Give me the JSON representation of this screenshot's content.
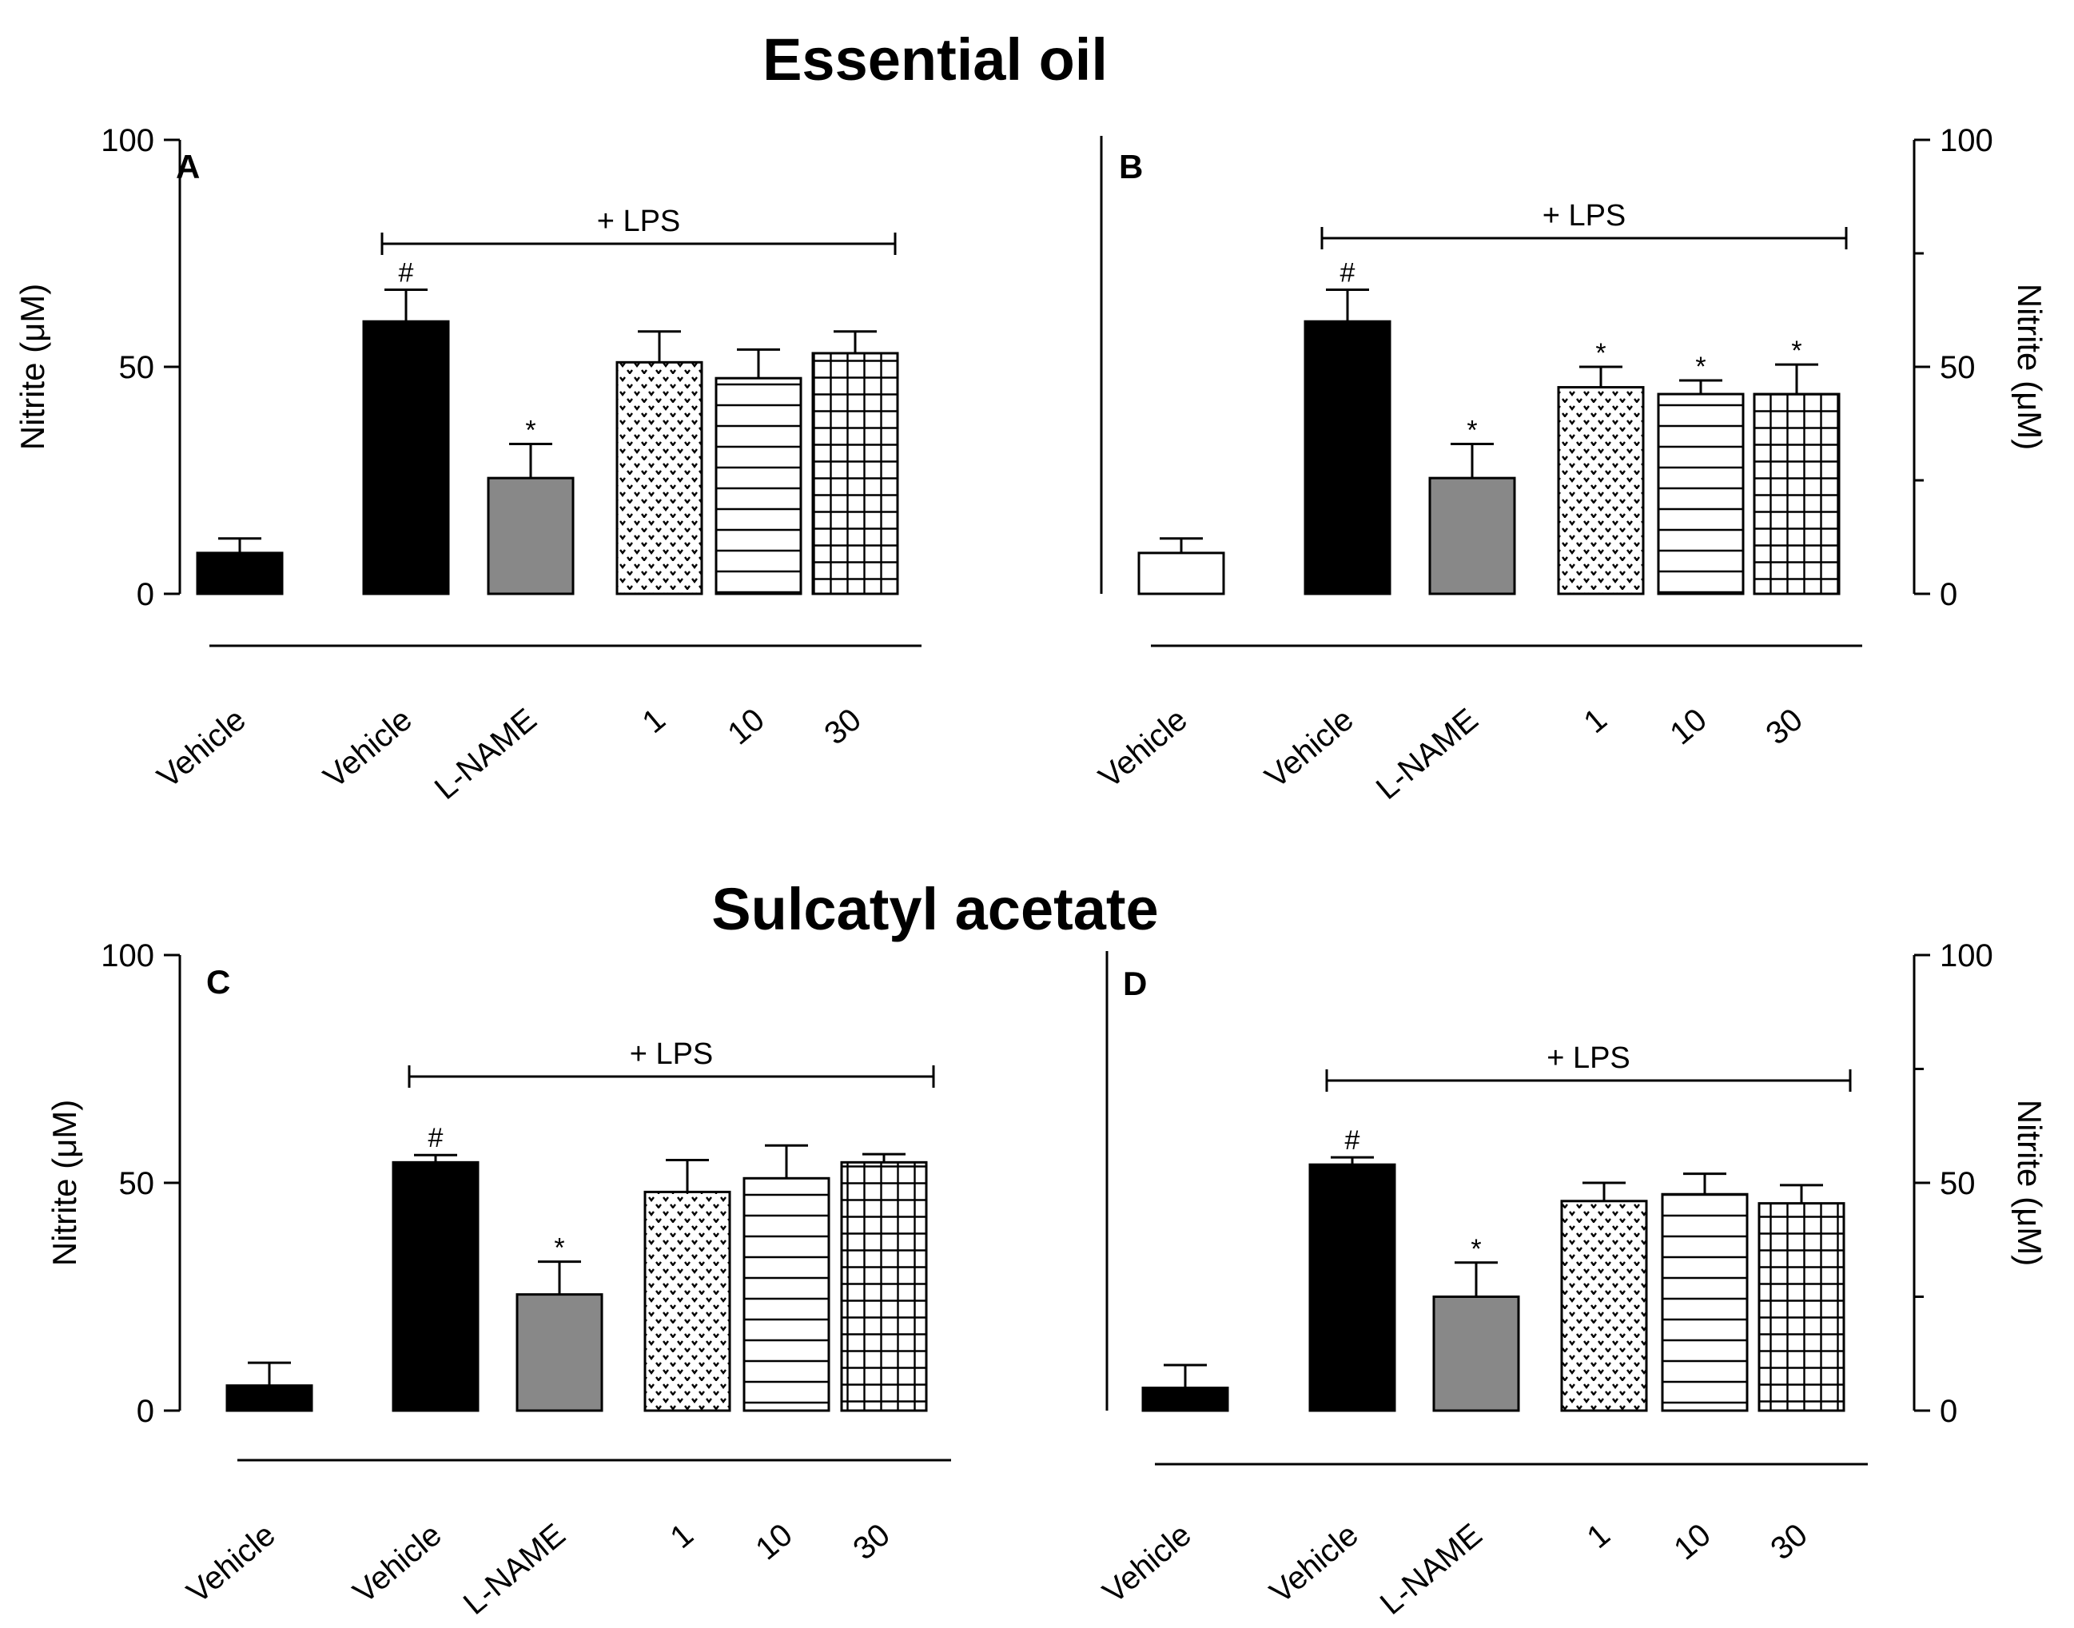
{
  "titles": {
    "top": "Essential oil",
    "bottom": "Sulcatyl acetate"
  },
  "chart_data": [
    {
      "panel": "A",
      "type": "bar",
      "ylabel": "Nitrite (μM)",
      "ylim": [
        0,
        100
      ],
      "yticks": [
        "0",
        "50",
        "100"
      ],
      "axis_side": "left",
      "bracket_label": "+ LPS",
      "categories": [
        "Vehicle",
        "Vehicle",
        "L-NAME",
        "1",
        "10",
        "30"
      ],
      "values": [
        9,
        60,
        25.5,
        51,
        47.5,
        53
      ],
      "errors": [
        3.2,
        7,
        7.5,
        6.8,
        6.3,
        4.8
      ],
      "significance": [
        "",
        "#",
        "*",
        "",
        "",
        ""
      ],
      "fills": [
        "black",
        "black",
        "gray",
        "dots",
        "hlines",
        "grid"
      ],
      "colors": {
        "black": "#000000",
        "gray": "#888888"
      }
    },
    {
      "panel": "B",
      "type": "bar",
      "ylabel": "Nitrite (μM)",
      "ylim": [
        0,
        100
      ],
      "yticks": [
        "0",
        "50",
        "100"
      ],
      "axis_side": "right",
      "bracket_label": "+ LPS",
      "categories": [
        "Vehicle",
        "Vehicle",
        "L-NAME",
        "1",
        "10",
        "30"
      ],
      "values": [
        9,
        60,
        25.5,
        45.5,
        44,
        44
      ],
      "errors": [
        3.2,
        7,
        7.5,
        4.5,
        3,
        6.5
      ],
      "significance": [
        "",
        "#",
        "*",
        "*",
        "*",
        "*"
      ],
      "fills": [
        "white",
        "black",
        "gray",
        "dots",
        "hlines",
        "grid"
      ],
      "colors": {
        "black": "#000000",
        "gray": "#888888"
      }
    },
    {
      "panel": "C",
      "type": "bar",
      "ylabel": "Nitrite (μM)",
      "ylim": [
        0,
        100
      ],
      "yticks": [
        "0",
        "50",
        "100"
      ],
      "axis_side": "left",
      "bracket_label": "+ LPS",
      "categories": [
        "Vehicle",
        "Vehicle",
        "L-NAME",
        "1",
        "10",
        "30"
      ],
      "values": [
        5.5,
        54.5,
        25.5,
        48,
        51,
        54.5
      ],
      "errors": [
        5,
        1.6,
        7.2,
        7,
        7.2,
        1.8
      ],
      "significance": [
        "",
        "#",
        "*",
        "",
        "",
        ""
      ],
      "fills": [
        "black",
        "black",
        "gray",
        "dots",
        "hlines",
        "grid"
      ],
      "colors": {
        "black": "#000000",
        "gray": "#888888"
      }
    },
    {
      "panel": "D",
      "type": "bar",
      "ylabel": "Nitrite (μM)",
      "ylim": [
        0,
        100
      ],
      "yticks": [
        "0",
        "50",
        "100"
      ],
      "axis_side": "right",
      "bracket_label": "+ LPS",
      "categories": [
        "Vehicle",
        "Vehicle",
        "L-NAME",
        "1",
        "10",
        "30"
      ],
      "values": [
        5,
        54,
        25,
        46,
        47.5,
        45.5
      ],
      "errors": [
        5,
        1.6,
        7.5,
        4,
        4.5,
        4
      ],
      "significance": [
        "",
        "#",
        "*",
        "",
        "",
        ""
      ],
      "fills": [
        "black",
        "black",
        "gray",
        "dots",
        "hlines",
        "grid"
      ],
      "colors": {
        "black": "#000000",
        "gray": "#888888"
      }
    }
  ]
}
